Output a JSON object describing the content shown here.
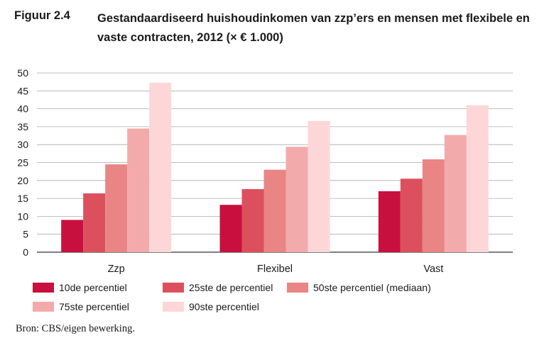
{
  "figure": {
    "label": "Figuur 2.4",
    "title": "Gestandaardiseerd huishoudinkomen van zzp’ers en mensen met flexibele en vaste contracten, 2012 (× € 1.000)",
    "source": "Bron: CBS/eigen bewerking."
  },
  "chart_data": {
    "type": "bar",
    "title": "Gestandaardiseerd huishoudinkomen van zzp’ers en mensen met flexibele en vaste contracten, 2012 (× € 1.000)",
    "xlabel": "",
    "ylabel": "",
    "categories": [
      "Zzp",
      "Flexibel",
      "Vast"
    ],
    "ylim": [
      0,
      50
    ],
    "yticks": [
      0,
      5,
      10,
      15,
      20,
      25,
      30,
      35,
      40,
      45,
      50
    ],
    "grid": true,
    "legend_position": "bottom",
    "series": [
      {
        "name": "10de percentiel",
        "color": "#c8103e",
        "values": [
          9.0,
          13.2,
          17.0
        ]
      },
      {
        "name": "25ste de percentiel",
        "color": "#dc505d",
        "values": [
          16.4,
          17.6,
          20.5
        ]
      },
      {
        "name": "50ste percentiel (mediaan)",
        "color": "#e98585",
        "values": [
          24.5,
          23.0,
          25.9
        ]
      },
      {
        "name": "75ste percentiel",
        "color": "#f3aaab",
        "values": [
          34.5,
          29.4,
          32.7
        ]
      },
      {
        "name": "90ste percentiel",
        "color": "#fdd7d8",
        "values": [
          47.3,
          36.6,
          41.0
        ]
      }
    ]
  }
}
